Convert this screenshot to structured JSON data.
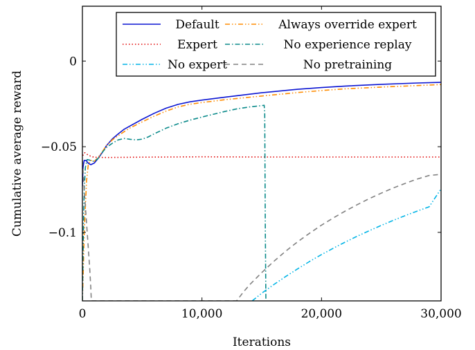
{
  "chart_data": {
    "type": "line",
    "title": "",
    "xlabel": "Iterations",
    "ylabel": "Cumulative average reward",
    "xlim": [
      0,
      30000
    ],
    "ylim": [
      -0.14,
      0.032
    ],
    "xticks": [
      0,
      10000,
      20000,
      30000
    ],
    "xtick_labels": [
      "0",
      "10,000",
      "20,000",
      "30,000"
    ],
    "yticks": [
      0,
      -0.05,
      -0.1
    ],
    "ytick_labels": [
      "0",
      "−0.05",
      "−0.1"
    ],
    "grid": false,
    "legend_position": "top-right",
    "series": [
      {
        "name": "Default",
        "color": "#0a14d2",
        "dash": "solid",
        "x": [
          0,
          50,
          150,
          300,
          500,
          700,
          1000,
          1300,
          1700,
          2000,
          2500,
          3000,
          3500,
          4000,
          5000,
          6000,
          7000,
          8000,
          9000,
          10000,
          12000,
          15000,
          18000,
          20000,
          22000,
          25000,
          28000,
          30000
        ],
        "y": [
          -0.073,
          -0.062,
          -0.058,
          -0.058,
          -0.0597,
          -0.0605,
          -0.0595,
          -0.057,
          -0.053,
          -0.0495,
          -0.0455,
          -0.0425,
          -0.0398,
          -0.0378,
          -0.034,
          -0.0305,
          -0.0275,
          -0.0253,
          -0.0238,
          -0.0228,
          -0.021,
          -0.0185,
          -0.0165,
          -0.0155,
          -0.0146,
          -0.0136,
          -0.0128,
          -0.0124
        ]
      },
      {
        "name": "Always override expert",
        "color": "#ff8c00",
        "dash": "dashdotdot",
        "x": [
          0,
          80,
          150,
          250,
          350,
          500,
          700,
          1000,
          1300,
          1700,
          2000,
          2500,
          3000,
          3500,
          4000,
          5000,
          6000,
          7000,
          8000,
          9000,
          10000,
          12000,
          15000,
          18000,
          20000,
          22000,
          25000,
          28000,
          30000
        ],
        "y": [
          -0.14,
          -0.12,
          -0.1,
          -0.085,
          -0.07,
          -0.06,
          -0.058,
          -0.0585,
          -0.0565,
          -0.0525,
          -0.0495,
          -0.046,
          -0.0435,
          -0.0412,
          -0.039,
          -0.0355,
          -0.0322,
          -0.0292,
          -0.0268,
          -0.0252,
          -0.0242,
          -0.0225,
          -0.0204,
          -0.0184,
          -0.0172,
          -0.0162,
          -0.0152,
          -0.0143,
          -0.0137
        ]
      },
      {
        "name": "Expert",
        "color": "#e00000",
        "dash": "dotted",
        "x": [
          0,
          80,
          200,
          400,
          700,
          1000,
          2000,
          5000,
          10000,
          15000,
          20000,
          25000,
          30000
        ],
        "y": [
          -0.055,
          -0.0548,
          -0.0535,
          -0.0545,
          -0.0556,
          -0.0562,
          -0.0563,
          -0.0561,
          -0.0559,
          -0.056,
          -0.056,
          -0.056,
          -0.056
        ]
      },
      {
        "name": "No experience replay",
        "color": "#0a8a8a",
        "dash": "dashdot",
        "x": [
          0,
          80,
          150,
          250,
          400,
          600,
          800,
          1000,
          1300,
          1700,
          2000,
          2500,
          3000,
          3500,
          4000,
          4500,
          5000,
          5500,
          6000,
          7000,
          8000,
          9000,
          10000,
          11000,
          12000,
          13000,
          14000,
          15000,
          15200,
          15250,
          15300,
          15350
        ],
        "y": [
          -0.14,
          -0.1,
          -0.075,
          -0.062,
          -0.0575,
          -0.0578,
          -0.0585,
          -0.0585,
          -0.057,
          -0.053,
          -0.0505,
          -0.048,
          -0.046,
          -0.0452,
          -0.0457,
          -0.046,
          -0.0456,
          -0.0443,
          -0.0425,
          -0.0392,
          -0.0366,
          -0.0345,
          -0.0327,
          -0.031,
          -0.0293,
          -0.0278,
          -0.0268,
          -0.026,
          -0.0258,
          -0.03,
          -0.1,
          -0.14
        ]
      },
      {
        "name": "No expert",
        "color": "#00b4e6",
        "dash": "dashdotdot",
        "x": [
          14200,
          15000,
          16000,
          17000,
          18000,
          19000,
          20000,
          21000,
          22000,
          23000,
          24000,
          25000,
          26000,
          27000,
          28000,
          29000,
          30000
        ],
        "y": [
          -0.14,
          -0.1355,
          -0.1305,
          -0.1258,
          -0.1213,
          -0.117,
          -0.113,
          -0.1092,
          -0.1056,
          -0.1022,
          -0.099,
          -0.0959,
          -0.093,
          -0.0902,
          -0.0876,
          -0.0851,
          -0.0746
        ]
      },
      {
        "name": "No pretraining",
        "color": "#808080",
        "dash": "dashed",
        "x": [
          0,
          150,
          300,
          450,
          600,
          700,
          750,
          12900,
          13500,
          14000,
          15000,
          16000,
          17000,
          18000,
          19000,
          20000,
          21000,
          22000,
          23000,
          24000,
          25000,
          26000,
          27000,
          28000,
          29000,
          30000
        ],
        "y": [
          -0.058,
          -0.075,
          -0.09,
          -0.105,
          -0.12,
          -0.132,
          -0.14,
          -0.14,
          -0.1345,
          -0.1305,
          -0.1235,
          -0.117,
          -0.111,
          -0.1055,
          -0.1005,
          -0.0958,
          -0.0915,
          -0.0875,
          -0.0838,
          -0.0803,
          -0.0771,
          -0.0741,
          -0.0714,
          -0.0689,
          -0.0668,
          -0.0661
        ]
      }
    ]
  }
}
